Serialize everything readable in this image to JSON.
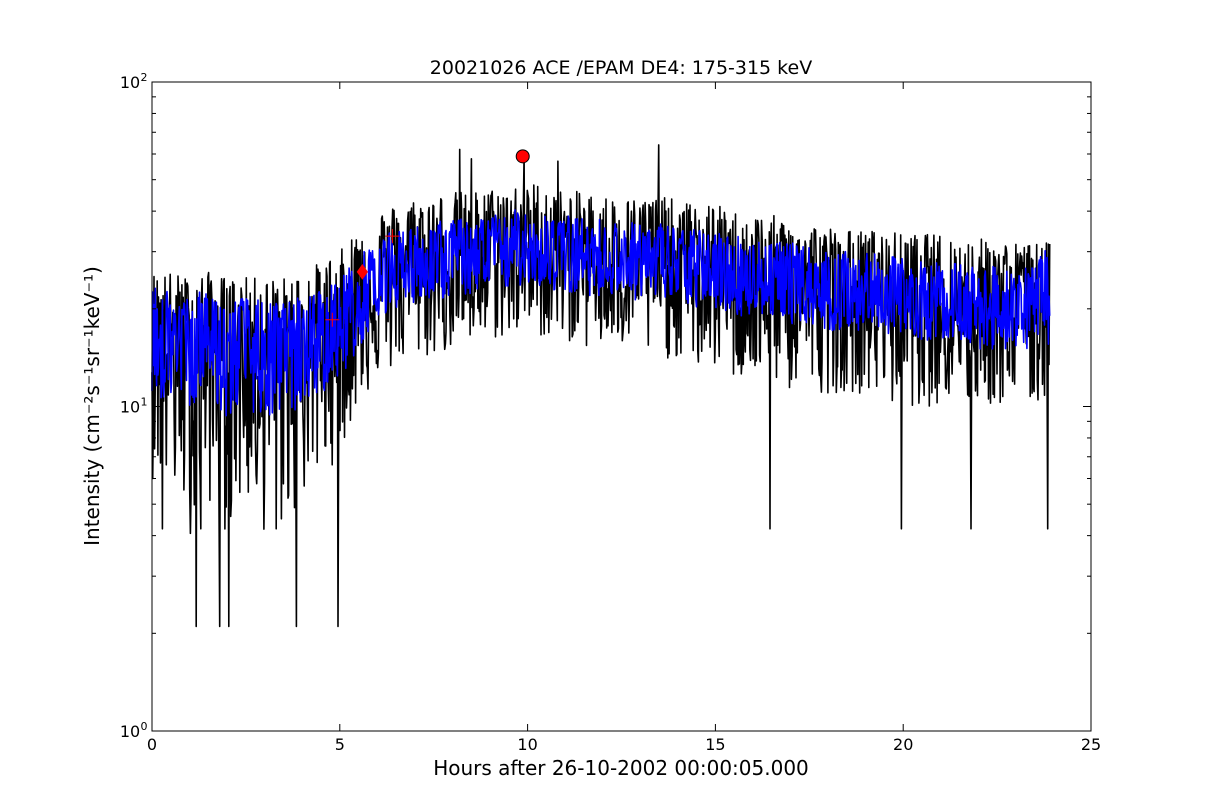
{
  "chart_data": {
    "type": "line",
    "title": "20021026 ACE /EPAM DE4: 175-315 keV",
    "xlabel": "Hours after 26-10-2002 00:00:05.000",
    "ylabel": "Intensity (cm⁻²s⁻¹sr⁻¹keV⁻¹)",
    "xlim": [
      0,
      25
    ],
    "ylim": [
      1,
      100
    ],
    "yscale": "log",
    "x_ticks": [
      0,
      5,
      10,
      15,
      20,
      25
    ],
    "x_tick_labels": [
      "0",
      "5",
      "10",
      "15",
      "20",
      "25"
    ],
    "y_ticks": [
      1,
      10,
      100
    ],
    "y_tick_labels": [
      "10",
      "10",
      "10"
    ],
    "y_tick_exponents": [
      "0",
      "1",
      "2"
    ],
    "grid": false,
    "series": [
      {
        "color": "#000000",
        "style": "raw 1-min intensity (noisy)",
        "x": [
          0.0,
          0.5,
          1.0,
          1.5,
          2.0,
          2.5,
          3.0,
          3.5,
          4.0,
          4.5,
          5.0,
          5.5,
          6.0,
          6.5,
          7.0,
          7.5,
          8.0,
          8.5,
          9.0,
          9.5,
          10.0,
          10.5,
          11.0,
          11.5,
          12.0,
          12.5,
          13.0,
          13.5,
          14.0,
          14.5,
          15.0,
          15.5,
          16.0,
          16.5,
          17.0,
          17.5,
          18.0,
          18.5,
          19.0,
          19.5,
          20.0,
          20.5,
          21.0,
          21.5,
          22.0,
          22.5,
          23.0,
          23.5,
          23.9
        ],
        "y": [
          17,
          16,
          15,
          16,
          14,
          15,
          14,
          14,
          15,
          16,
          17,
          21,
          25,
          26,
          27,
          27,
          28,
          28,
          29,
          30,
          31,
          30,
          29,
          29,
          28,
          28,
          28,
          28,
          27,
          26,
          26,
          25,
          24,
          24,
          23,
          23,
          22,
          22,
          22,
          22,
          21,
          21,
          21,
          20,
          20,
          20,
          20,
          20,
          20
        ],
        "spread_low": [
          6,
          5,
          4,
          5,
          4,
          5,
          4,
          4,
          5,
          6,
          7,
          10,
          12,
          13,
          14,
          14,
          15,
          15,
          16,
          16,
          17,
          16,
          16,
          15,
          15,
          15,
          14,
          14,
          14,
          13,
          13,
          12,
          12,
          12,
          11,
          11,
          11,
          11,
          11,
          10,
          10,
          10,
          10,
          10,
          10,
          10,
          10,
          10,
          10
        ],
        "spread_high": [
          26,
          26,
          25,
          26,
          25,
          25,
          25,
          25,
          26,
          28,
          30,
          36,
          40,
          42,
          44,
          45,
          46,
          46,
          47,
          48,
          50,
          48,
          46,
          46,
          45,
          44,
          44,
          45,
          43,
          42,
          42,
          40,
          39,
          39,
          37,
          37,
          36,
          35,
          35,
          35,
          34,
          34,
          34,
          33,
          33,
          33,
          32,
          32,
          32
        ],
        "extreme_dips": [
          [
            1.18,
            2.1
          ],
          [
            1.8,
            2.1
          ],
          [
            2.05,
            2.1
          ],
          [
            3.85,
            2.1
          ],
          [
            4.95,
            2.1
          ],
          [
            16.45,
            4.2
          ],
          [
            19.95,
            4.2
          ],
          [
            21.8,
            4.2
          ],
          [
            23.85,
            4.2
          ],
          [
            0.28,
            4.2
          ],
          [
            1.3,
            4.2
          ],
          [
            3.3,
            4.2
          ]
        ],
        "extreme_peaks": [
          [
            8.2,
            62
          ],
          [
            9.9,
            60
          ],
          [
            13.5,
            64
          ],
          [
            8.5,
            58
          ],
          [
            10.8,
            57
          ]
        ]
      },
      {
        "color": "#0000ff",
        "style": "smoothed intensity",
        "x": [
          0.0,
          0.5,
          1.0,
          1.5,
          2.0,
          2.5,
          3.0,
          3.5,
          4.0,
          4.5,
          5.0,
          5.5,
          6.0,
          6.5,
          7.0,
          7.5,
          8.0,
          8.5,
          9.0,
          9.5,
          10.0,
          10.5,
          11.0,
          11.5,
          12.0,
          12.5,
          13.0,
          13.5,
          14.0,
          14.5,
          15.0,
          15.5,
          16.0,
          16.5,
          17.0,
          17.5,
          18.0,
          18.5,
          19.0,
          19.5,
          20.0,
          20.5,
          21.0,
          21.5,
          22.0,
          22.5,
          23.0,
          23.5,
          23.9
        ],
        "y": [
          17,
          16,
          15,
          16,
          14,
          15,
          14,
          14,
          15,
          16,
          17,
          21,
          25,
          26,
          27,
          27,
          28,
          28,
          29,
          30,
          31,
          30,
          29,
          29,
          28,
          28,
          28,
          28,
          27,
          26,
          26,
          25,
          24,
          24,
          23,
          23,
          22,
          22,
          22,
          22,
          21,
          21,
          21,
          20,
          20,
          20,
          20,
          20,
          20
        ],
        "spread_low": [
          11,
          10,
          10,
          11,
          9,
          10,
          9,
          9,
          10,
          11,
          12,
          15,
          19,
          20,
          21,
          21,
          22,
          22,
          23,
          23,
          24,
          23,
          22,
          22,
          22,
          22,
          21,
          21,
          21,
          20,
          20,
          19,
          19,
          19,
          18,
          18,
          17,
          17,
          17,
          17,
          16,
          16,
          16,
          16,
          15,
          15,
          15,
          15,
          15
        ],
        "spread_high": [
          24,
          23,
          22,
          23,
          21,
          22,
          21,
          21,
          22,
          23,
          25,
          29,
          33,
          35,
          36,
          37,
          38,
          38,
          39,
          40,
          41,
          40,
          39,
          38,
          38,
          37,
          37,
          37,
          36,
          35,
          35,
          34,
          33,
          33,
          32,
          31,
          30,
          30,
          30,
          29,
          29,
          28,
          28,
          28,
          27,
          27,
          27,
          27,
          32
        ]
      }
    ],
    "markers": [
      {
        "shape": "plus",
        "color": "#ff0000",
        "x": 4.8,
        "y": 18.5
      },
      {
        "shape": "diamond",
        "color": "#ff0000",
        "x": 5.6,
        "y": 26
      },
      {
        "shape": "plus",
        "color": "#ff0000",
        "x": 6.4,
        "y": 33.5
      },
      {
        "shape": "circle",
        "color": "#ff0000",
        "x": 9.87,
        "y": 59
      }
    ]
  }
}
